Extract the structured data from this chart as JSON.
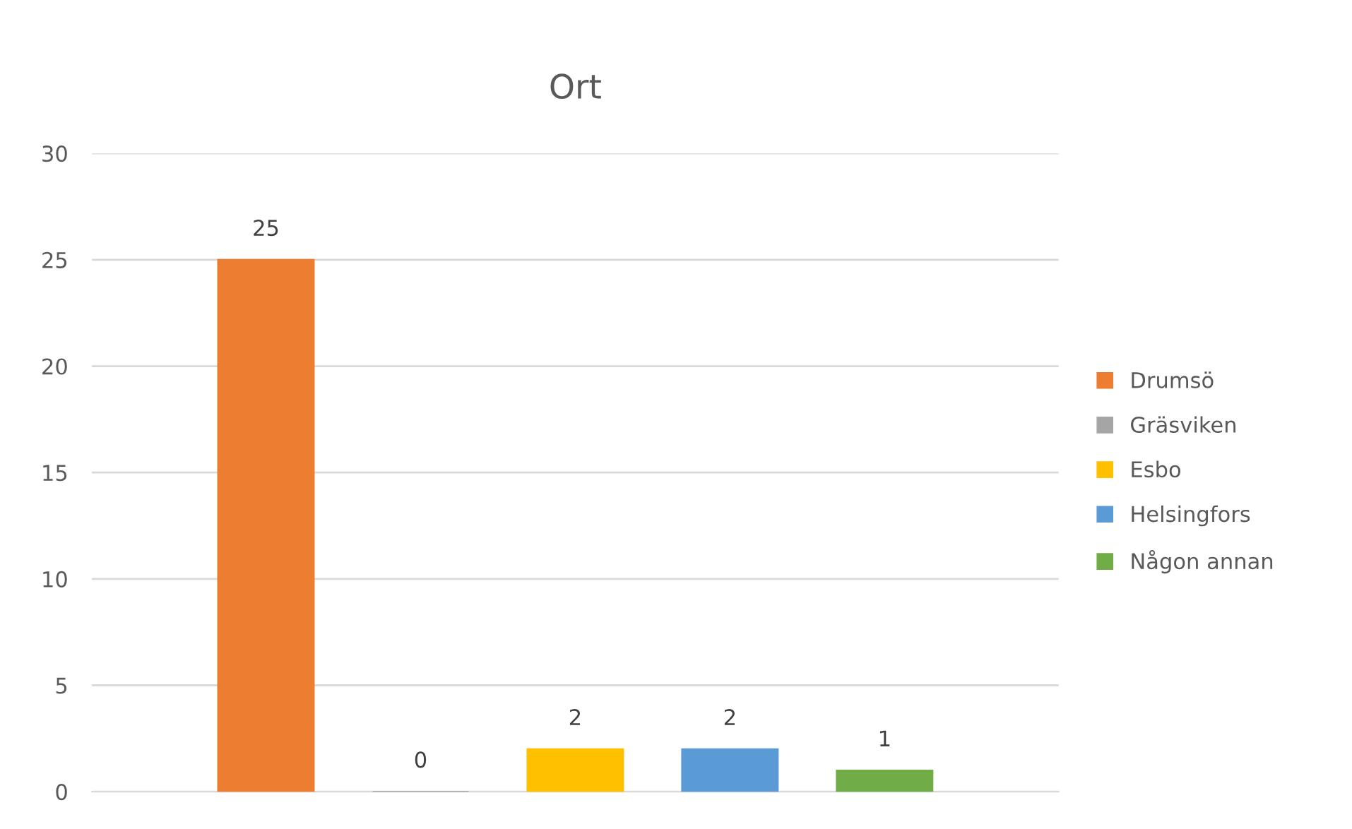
{
  "chart_data": {
    "type": "bar",
    "title": "Ort",
    "categories": [
      null
    ],
    "series": [
      {
        "name": "Drumsö",
        "color": "#ed7d31",
        "values": [
          25
        ]
      },
      {
        "name": "Gräsviken",
        "color": "#a5a5a5",
        "values": [
          0
        ]
      },
      {
        "name": "Esbo",
        "color": "#ffc000",
        "values": [
          2
        ]
      },
      {
        "name": "Helsingfors",
        "color": "#5b9bd5",
        "values": [
          2
        ]
      },
      {
        "name": "Någon annan",
        "color": "#70ad47",
        "values": [
          1
        ]
      }
    ],
    "ylim": [
      0,
      30
    ],
    "yticks": [
      0,
      5,
      10,
      15,
      20,
      25,
      30
    ],
    "grid": "y",
    "legend": "right",
    "data_labels": true,
    "tick_labels": "y"
  }
}
